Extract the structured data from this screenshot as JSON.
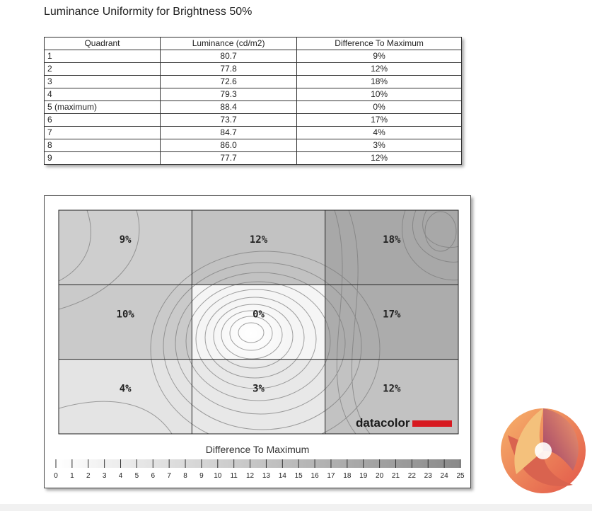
{
  "page_title": "Luminance Uniformity for Brightness 50%",
  "table": {
    "headers": [
      "Quadrant",
      "Luminance (cd/m2)",
      "Difference To Maximum"
    ],
    "rows": [
      [
        "1",
        "80.7",
        "9%"
      ],
      [
        "2",
        "77.8",
        "12%"
      ],
      [
        "3",
        "72.6",
        "18%"
      ],
      [
        "4",
        "79.3",
        "10%"
      ],
      [
        "5 (maximum)",
        "88.4",
        "0%"
      ],
      [
        "6",
        "73.7",
        "17%"
      ],
      [
        "7",
        "84.7",
        "4%"
      ],
      [
        "8",
        "86.0",
        "3%"
      ],
      [
        "9",
        "77.7",
        "12%"
      ]
    ]
  },
  "chart_data": {
    "type": "heatmap",
    "title": "",
    "legend_title": "Difference To Maximum",
    "grid": true,
    "rows": 3,
    "cols": 3,
    "cells": [
      [
        "9%",
        "12%",
        "18%"
      ],
      [
        "10%",
        "0%",
        "17%"
      ],
      [
        "4%",
        "3%",
        "12%"
      ]
    ],
    "values": [
      [
        9,
        12,
        18
      ],
      [
        10,
        0,
        17
      ],
      [
        4,
        3,
        12
      ]
    ],
    "scale_min": 0,
    "scale_max": 25,
    "scale_ticks": [
      "0",
      "1",
      "2",
      "3",
      "4",
      "5",
      "6",
      "7",
      "8",
      "9",
      "10",
      "11",
      "12",
      "13",
      "14",
      "15",
      "16",
      "17",
      "18",
      "19",
      "20",
      "21",
      "22",
      "23",
      "24",
      "25"
    ],
    "brand": "datacolor",
    "colors": {
      "min": "#ffffff",
      "max": "#8a8a8a",
      "brand_bar": "#d71920"
    }
  }
}
